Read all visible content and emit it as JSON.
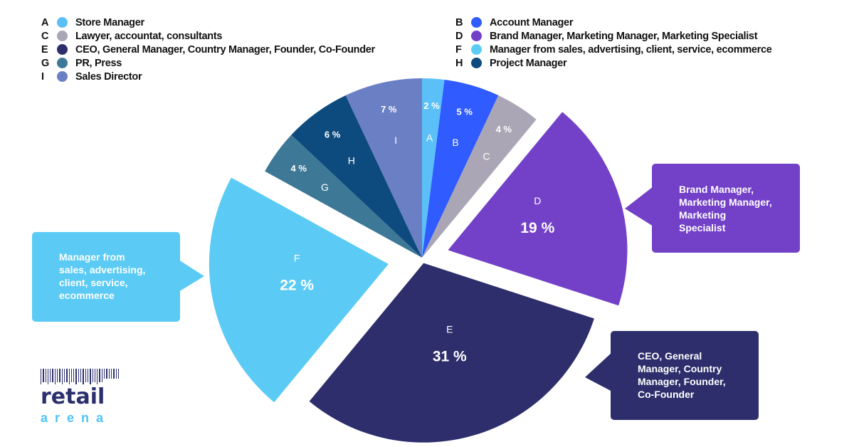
{
  "chart_data": {
    "type": "pie",
    "start_angle_deg": 0,
    "direction": "clockwise",
    "slices": [
      {
        "id": "A",
        "label": "Store Manager",
        "value": 2,
        "value_label": "2 %",
        "color": "#5bc0f8",
        "exploded": false
      },
      {
        "id": "B",
        "label": "Account Manager",
        "value": 5,
        "value_label": "5 %",
        "color": "#2f5bff",
        "exploded": false
      },
      {
        "id": "C",
        "label": "Lawyer, accountat, consultants",
        "value": 4,
        "value_label": "4 %",
        "color": "#aba6b5",
        "exploded": false
      },
      {
        "id": "D",
        "label": "Brand Manager, Marketing Manager, Marketing Specialist",
        "value": 19,
        "value_label": "19 %",
        "color": "#7340c8",
        "exploded": true
      },
      {
        "id": "E",
        "label": "CEO, General Manager, Country Manager, Founder, Co-Founder",
        "value": 31,
        "value_label": "31 %",
        "color": "#2d2e6b",
        "exploded": true
      },
      {
        "id": "F",
        "label": "Manager from sales, advertising, client, service, ecommerce",
        "value": 22,
        "value_label": "22 %",
        "color": "#5bcbf5",
        "exploded": true
      },
      {
        "id": "G",
        "label": "PR, Press",
        "value": 4,
        "value_label": "4 %",
        "color": "#3e7897",
        "exploded": false
      },
      {
        "id": "H",
        "label": "Project Manager",
        "value": 6,
        "value_label": "6 %",
        "color": "#0d4a7e",
        "exploded": false
      },
      {
        "id": "I",
        "label": "Sales Director",
        "value": 7,
        "value_label": "7 %",
        "color": "#6b7fc4",
        "exploded": false
      }
    ],
    "legend_placement": "top",
    "callouts": {
      "D": [
        "Brand Manager,",
        "Marketing Manager,",
        "Marketing",
        "Specialist"
      ],
      "E": [
        "CEO, General",
        "Manager, Country",
        "Manager, Founder,",
        "Co-Founder"
      ],
      "F": [
        "Manager from",
        "sales, advertising,",
        "client, service,",
        "ecommerce"
      ]
    }
  },
  "logo": {
    "line1": "retail",
    "line2": "arena"
  }
}
